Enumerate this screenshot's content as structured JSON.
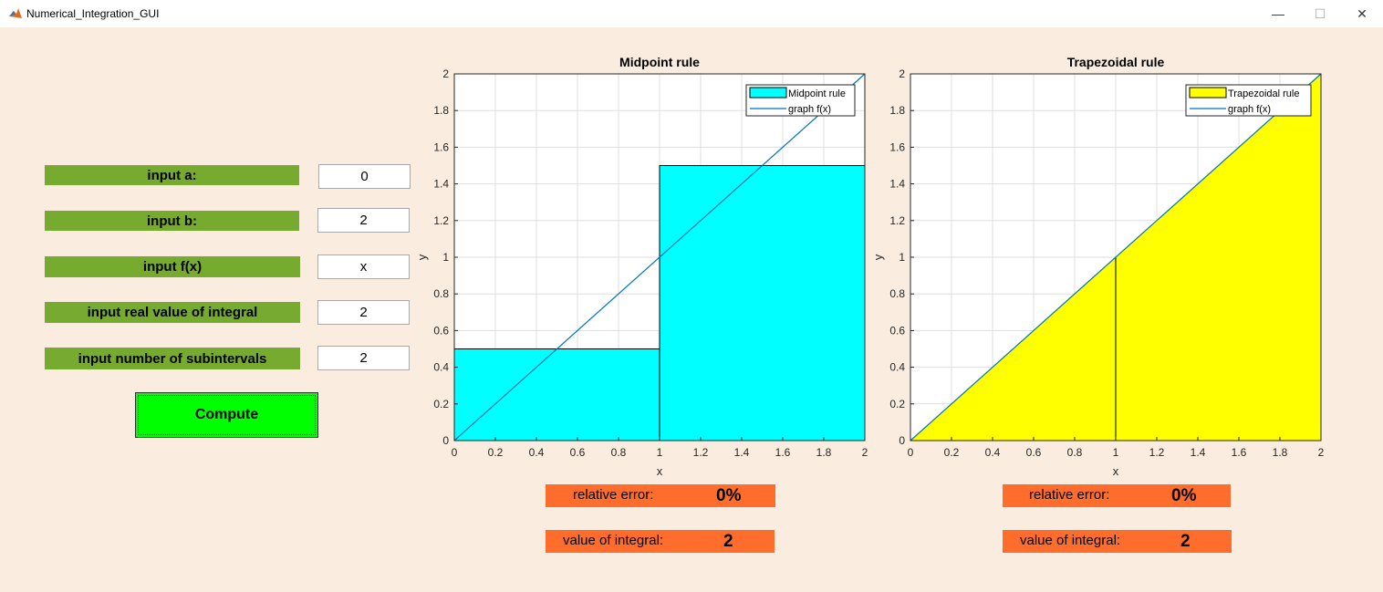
{
  "window": {
    "title": "Numerical_Integration_GUI",
    "min_glyph": "—",
    "max_glyph": "☐",
    "close_glyph": "✕"
  },
  "form": {
    "a": {
      "label": "input a:",
      "value": "0"
    },
    "b": {
      "label": "input b:",
      "value": "2"
    },
    "fx": {
      "label": "input f(x)",
      "value": "x"
    },
    "real": {
      "label": "input real value of integral",
      "value": "2"
    },
    "n": {
      "label": "input number of subintervals",
      "value": "2"
    },
    "compute_label": "Compute"
  },
  "midpoint": {
    "relative_error_label": "relative error:",
    "relative_error_value": "0%",
    "integral_label": "value of integral:",
    "integral_value": "2"
  },
  "trapezoid": {
    "relative_error_label": "relative error:",
    "relative_error_value": "0%",
    "integral_label": "value of integral:",
    "integral_value": "2"
  },
  "colors": {
    "label_bg": "#77ab2f",
    "compute_bg": "#00ff00",
    "result_bg": "#ff6d2c",
    "midpoint_fill": "#00ffff",
    "trapezoid_fill": "#ffff00",
    "line": "#0072bd"
  },
  "chart_data": [
    {
      "type": "bar",
      "title": "Midpoint rule",
      "xlabel": "x",
      "ylabel": "y",
      "xlim": [
        0,
        2
      ],
      "ylim": [
        0,
        2
      ],
      "xticks": [
        "0",
        "0.2",
        "0.4",
        "0.6",
        "0.8",
        "1",
        "1.2",
        "1.4",
        "1.6",
        "1.8",
        "2"
      ],
      "yticks": [
        "0",
        "0.2",
        "0.4",
        "0.6",
        "0.8",
        "1",
        "1.2",
        "1.4",
        "1.6",
        "1.8",
        "2"
      ],
      "grid": true,
      "legend": "top-right",
      "rectangles": [
        {
          "x0": 0,
          "x1": 1,
          "height": 0.5
        },
        {
          "x0": 1,
          "x1": 2,
          "height": 1.5
        }
      ],
      "line": {
        "x": [
          0,
          2
        ],
        "y": [
          0,
          2
        ]
      },
      "legend_entries": [
        "Midpoint rule",
        "graph f(x)"
      ]
    },
    {
      "type": "area",
      "title": "Trapezoidal rule",
      "xlabel": "x",
      "ylabel": "y",
      "xlim": [
        0,
        2
      ],
      "ylim": [
        0,
        2
      ],
      "xticks": [
        "0",
        "0.2",
        "0.4",
        "0.6",
        "0.8",
        "1",
        "1.2",
        "1.4",
        "1.6",
        "1.8",
        "2"
      ],
      "yticks": [
        "0",
        "0.2",
        "0.4",
        "0.6",
        "0.8",
        "1",
        "1.2",
        "1.4",
        "1.6",
        "1.8",
        "2"
      ],
      "grid": true,
      "legend": "top-right",
      "trapezoids": [
        {
          "x0": 0,
          "x1": 1,
          "y0": 0,
          "y1": 1
        },
        {
          "x0": 1,
          "x1": 2,
          "y0": 1,
          "y1": 2
        }
      ],
      "line": {
        "x": [
          0,
          2
        ],
        "y": [
          0,
          2
        ]
      },
      "legend_entries": [
        "Trapezoidal rule",
        "graph f(x)"
      ]
    }
  ]
}
